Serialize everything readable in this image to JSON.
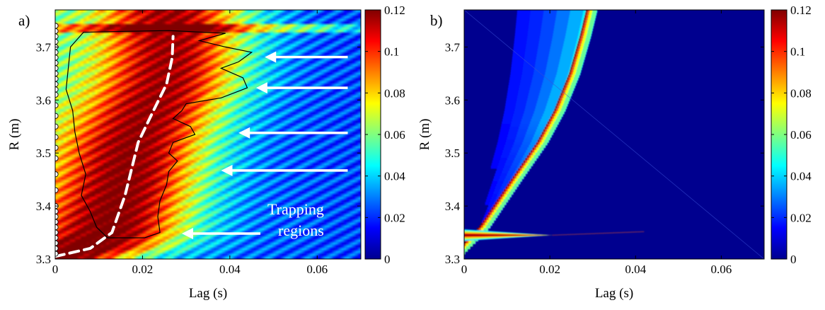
{
  "chart_data": [
    {
      "type": "heatmap",
      "panel_label": "a)",
      "xlabel": "Lag (s)",
      "ylabel": "R (m)",
      "xlim": [
        0,
        0.07
      ],
      "ylim": [
        3.3,
        3.77
      ],
      "xticks": [
        0,
        0.02,
        0.04,
        0.06
      ],
      "xtick_labels": [
        "0",
        "0.02",
        "0.04",
        "0.06"
      ],
      "yticks": [
        3.3,
        3.4,
        3.5,
        3.6,
        3.7
      ],
      "ytick_labels": [
        "3.3",
        "3.4",
        "3.5",
        "3.6",
        "3.7"
      ],
      "colormap": "jet",
      "clim": [
        0,
        0.12
      ],
      "colorbar_ticks": [
        0,
        0.02,
        0.04,
        0.06,
        0.08,
        0.1,
        0.12
      ],
      "colorbar_labels": [
        "0",
        "0.02",
        "0.04",
        "0.06",
        "0.08",
        "0.1",
        "0.12"
      ],
      "ridge_curve": {
        "style": "white dashed",
        "points": [
          [
            0.0,
            3.305
          ],
          [
            0.008,
            3.32
          ],
          [
            0.013,
            3.35
          ],
          [
            0.016,
            3.42
          ],
          [
            0.019,
            3.52
          ],
          [
            0.0225,
            3.58
          ],
          [
            0.0255,
            3.63
          ],
          [
            0.0268,
            3.68
          ],
          [
            0.027,
            3.72
          ]
        ]
      },
      "contour": {
        "level": 0.1,
        "style": "black solid",
        "points": [
          [
            0.0065,
            3.728
          ],
          [
            0.026,
            3.731
          ],
          [
            0.039,
            3.726
          ],
          [
            0.033,
            3.712
          ],
          [
            0.039,
            3.7
          ],
          [
            0.045,
            3.69
          ],
          [
            0.042,
            3.672
          ],
          [
            0.038,
            3.66
          ],
          [
            0.043,
            3.642
          ],
          [
            0.044,
            3.623
          ],
          [
            0.038,
            3.604
          ],
          [
            0.03,
            3.593
          ],
          [
            0.029,
            3.58
          ],
          [
            0.027,
            3.565
          ],
          [
            0.031,
            3.55
          ],
          [
            0.032,
            3.535
          ],
          [
            0.027,
            3.52
          ],
          [
            0.026,
            3.5
          ],
          [
            0.028,
            3.485
          ],
          [
            0.026,
            3.465
          ],
          [
            0.0255,
            3.44
          ],
          [
            0.024,
            3.41
          ],
          [
            0.0235,
            3.38
          ],
          [
            0.024,
            3.35
          ],
          [
            0.0205,
            3.34
          ],
          [
            0.012,
            3.34
          ],
          [
            0.0095,
            3.36
          ],
          [
            0.008,
            3.39
          ],
          [
            0.006,
            3.42
          ],
          [
            0.007,
            3.46
          ],
          [
            0.0055,
            3.5
          ],
          [
            0.0045,
            3.54
          ],
          [
            0.004,
            3.58
          ],
          [
            0.0025,
            3.62
          ],
          [
            0.003,
            3.66
          ],
          [
            0.0035,
            3.7
          ],
          [
            0.0065,
            3.728
          ]
        ]
      },
      "arrows": [
        {
          "from": [
            0.067,
            3.681
          ],
          "to": [
            0.048,
            3.681
          ]
        },
        {
          "from": [
            0.067,
            3.623
          ],
          "to": [
            0.046,
            3.623
          ]
        },
        {
          "from": [
            0.067,
            3.538
          ],
          "to": [
            0.042,
            3.538
          ]
        },
        {
          "from": [
            0.067,
            3.467
          ],
          "to": [
            0.038,
            3.467
          ]
        },
        {
          "from": [
            0.047,
            3.348
          ],
          "to": [
            0.029,
            3.348
          ]
        }
      ],
      "annotation": {
        "lines": [
          "Trapping",
          "regions"
        ],
        "anchor": [
          0.042,
          3.395
        ]
      },
      "markers": {
        "style": "white circle",
        "x": 0,
        "y": [
          3.31,
          3.32,
          3.33,
          3.34,
          3.35,
          3.36,
          3.37,
          3.38,
          3.39,
          3.4,
          3.43,
          3.46,
          3.49,
          3.51,
          3.53,
          3.55,
          3.57,
          3.59,
          3.61,
          3.62,
          3.63,
          3.64,
          3.65,
          3.66,
          3.67,
          3.68,
          3.69,
          3.7,
          3.71,
          3.72,
          3.73,
          3.74
        ]
      }
    },
    {
      "type": "heatmap",
      "panel_label": "b)",
      "xlabel": "Lag (s)",
      "ylabel": "R (m)",
      "xlim": [
        0,
        0.07
      ],
      "ylim": [
        3.3,
        3.77
      ],
      "xticks": [
        0,
        0.02,
        0.04,
        0.06
      ],
      "xtick_labels": [
        "0",
        "0.02",
        "0.04",
        "0.06"
      ],
      "yticks": [
        3.3,
        3.4,
        3.5,
        3.6,
        3.7
      ],
      "ytick_labels": [
        "3.3",
        "3.4",
        "3.5",
        "3.6",
        "3.7"
      ],
      "colormap": "jet",
      "clim": [
        0,
        0.12
      ],
      "colorbar_ticks": [
        0,
        0.02,
        0.04,
        0.06,
        0.08,
        0.1,
        0.12
      ],
      "colorbar_labels": [
        "0",
        "0.02",
        "0.04",
        "0.06",
        "0.08",
        "0.1",
        "0.12"
      ],
      "ridge_curve": {
        "points": [
          [
            0.0,
            3.31
          ],
          [
            0.006,
            3.36
          ],
          [
            0.0135,
            3.45
          ],
          [
            0.0195,
            3.52
          ],
          [
            0.0235,
            3.58
          ],
          [
            0.027,
            3.65
          ],
          [
            0.0295,
            3.72
          ],
          [
            0.031,
            3.77
          ]
        ]
      },
      "secondary_band": {
        "y": 3.345,
        "x_end": 0.0205,
        "half_width_at_zero": 0.011,
        "faint_x_end": 0.042
      }
    }
  ]
}
